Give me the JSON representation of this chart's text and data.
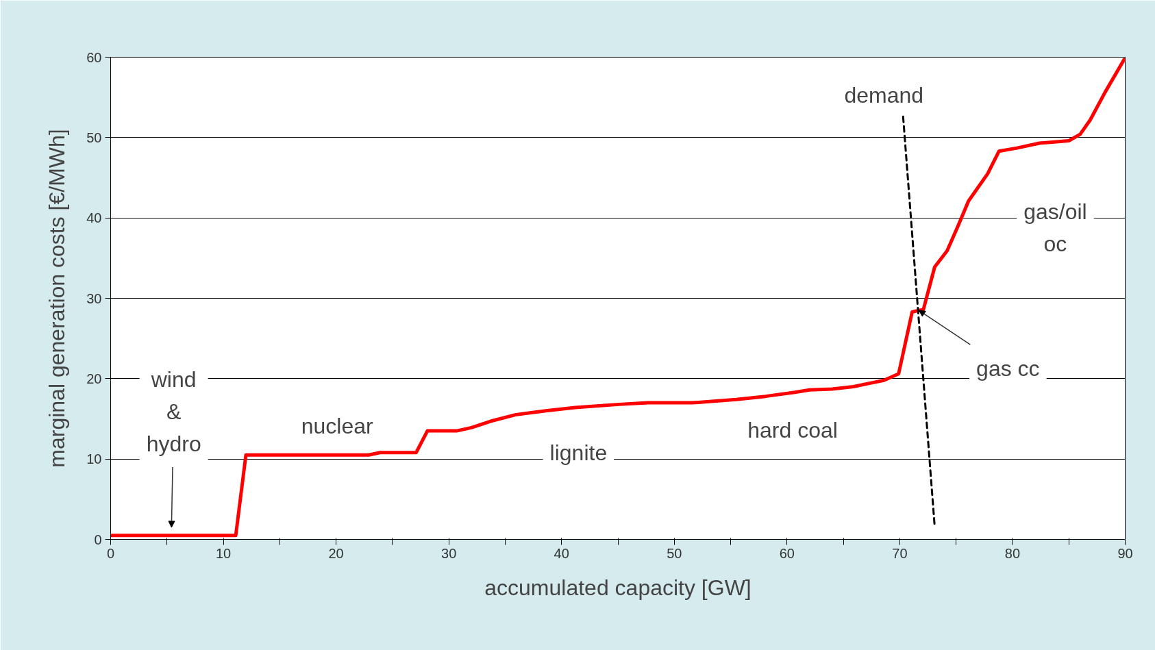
{
  "chart_data": {
    "type": "line",
    "xlabel": "accumulated capacity [GW]",
    "ylabel": "marginal generation costs [€/MWh]",
    "xlim": [
      0,
      90
    ],
    "ylim": [
      0,
      60
    ],
    "xticks": [
      0,
      {
        "value": 5,
        "label": null
      },
      10,
      {
        "value": 15,
        "label": null
      },
      20,
      {
        "value": 25,
        "label": null
      },
      30,
      {
        "value": 35,
        "label": null
      },
      40,
      {
        "value": 45,
        "label": null
      },
      50,
      {
        "value": 55,
        "label": null
      },
      60,
      {
        "value": 65,
        "label": null
      },
      70,
      {
        "value": 75,
        "label": null
      },
      80,
      {
        "value": 85,
        "label": null
      },
      90
    ],
    "yticks": [
      0,
      10,
      20,
      30,
      40,
      50,
      60
    ],
    "grid": "y",
    "marker": "none",
    "series": [
      {
        "color": "#ff0000",
        "line_style": "solid",
        "x": [
          0,
          11.1,
          12,
          22.9,
          23.9,
          27.1,
          28.1,
          30.7,
          32,
          33.7,
          35.9,
          38.6,
          41.2,
          45.1,
          47.7,
          51.6,
          55.5,
          58.1,
          60.7,
          62,
          64,
          65.9,
          68.6,
          69.9,
          71.1,
          71.7,
          72.1,
          73.1,
          74.2,
          75.2,
          76.1,
          77.8,
          78.8,
          80.4,
          82.4,
          85,
          86,
          86.9,
          88.2,
          89.9
        ],
        "values": [
          0.5,
          0.5,
          10.5,
          10.5,
          10.8,
          10.8,
          13.5,
          13.5,
          13.9,
          14.7,
          15.5,
          16,
          16.4,
          16.8,
          17,
          17,
          17.4,
          17.8,
          18.3,
          18.6,
          18.7,
          19,
          19.8,
          20.6,
          28.3,
          28.5,
          28.6,
          33.9,
          35.9,
          39.1,
          42.1,
          45.5,
          48.3,
          48.7,
          49.3,
          49.6,
          50.4,
          52.2,
          55.6,
          59.7
        ]
      },
      {
        "color": "#000000",
        "line_style": "dashed",
        "x": [
          70.3,
          73.1
        ],
        "values": [
          52.6,
          1.6
        ]
      }
    ],
    "annotations": [
      "wind\n&\nhydro",
      "nuclear",
      "lignite",
      "hard coal",
      "demand",
      "gas/oil\noc",
      {
        "text": "gas cc",
        "x": 71.7,
        "y": 28.5
      }
    ]
  }
}
